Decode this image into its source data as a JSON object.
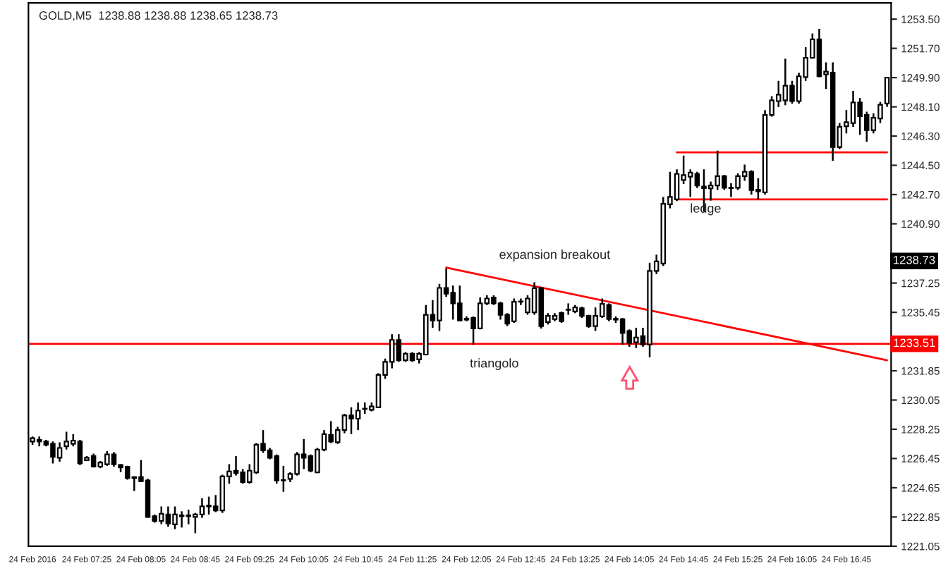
{
  "chart_data": {
    "type": "candlestick",
    "title": "GOLD,M5  1238.88 1238.88 1238.65 1238.73",
    "categories": [
      "24 Feb 2016",
      null,
      null,
      null,
      null,
      null,
      null,
      null,
      "24 Feb 07:25",
      null,
      null,
      null,
      null,
      null,
      null,
      null,
      "24 Feb 08:05",
      null,
      null,
      null,
      null,
      null,
      null,
      null,
      "24 Feb 08:45",
      null,
      null,
      null,
      null,
      null,
      null,
      null,
      "24 Feb 09:25",
      null,
      null,
      null,
      null,
      null,
      null,
      null,
      "24 Feb 10:05",
      null,
      null,
      null,
      null,
      null,
      null,
      null,
      "24 Feb 10:45",
      null,
      null,
      null,
      null,
      null,
      null,
      null,
      "24 Feb 11:25",
      null,
      null,
      null,
      null,
      null,
      null,
      null,
      "24 Feb 12:05",
      null,
      null,
      null,
      null,
      null,
      null,
      null,
      "24 Feb 12:45",
      null,
      null,
      null,
      null,
      null,
      null,
      null,
      "24 Feb 13:25",
      null,
      null,
      null,
      null,
      null,
      null,
      null,
      "24 Feb 14:05",
      null,
      null,
      null,
      null,
      null,
      null,
      null,
      "24 Feb 14:45",
      null,
      null,
      null,
      null,
      null,
      null,
      null,
      "24 Feb 15:25",
      null,
      null,
      null,
      null,
      null,
      null,
      null,
      "24 Feb 16:05",
      null,
      null,
      null,
      null,
      null,
      null,
      null,
      "24 Feb 16:45",
      null,
      null,
      null,
      null,
      null,
      null
    ],
    "ohlc": [
      [
        1227.5,
        1227.8,
        1227.3,
        1227.7
      ],
      [
        1227.6,
        1227.8,
        1227.2,
        1227.5
      ],
      [
        1227.5,
        1227.6,
        1227.2,
        1227.3
      ],
      [
        1227.35,
        1227.5,
        1226.15,
        1226.55
      ],
      [
        1226.5,
        1227.45,
        1226.25,
        1227.1
      ],
      [
        1227.2,
        1228.1,
        1227.0,
        1227.5
      ],
      [
        1227.35,
        1227.95,
        1227.2,
        1227.55
      ],
      [
        1227.5,
        1227.6,
        1226.05,
        1226.15
      ],
      [
        1226.35,
        1226.6,
        1226.3,
        1226.5
      ],
      [
        1226.6,
        1226.75,
        1225.9,
        1225.95
      ],
      [
        1225.95,
        1226.3,
        1225.85,
        1226.2
      ],
      [
        1226.1,
        1226.9,
        1226.0,
        1226.7
      ],
      [
        1226.7,
        1226.85,
        1225.95,
        1226.1
      ],
      [
        1226.05,
        1226.1,
        1225.6,
        1225.9
      ],
      [
        1225.95,
        1226.0,
        1225.15,
        1225.25
      ],
      [
        1225.25,
        1225.35,
        1224.45,
        1225.3
      ],
      [
        1225.3,
        1226.35,
        1225.0,
        1225.05
      ],
      [
        1225.1,
        1225.2,
        1222.8,
        1222.85
      ],
      [
        1222.9,
        1223.0,
        1222.5,
        1222.6
      ],
      [
        1222.6,
        1223.5,
        1222.4,
        1223.05
      ],
      [
        1223.0,
        1223.5,
        1222.25,
        1222.45
      ],
      [
        1222.4,
        1223.5,
        1222.1,
        1223.0
      ],
      [
        1222.9,
        1223.2,
        1222.2,
        1222.95
      ],
      [
        1222.95,
        1223.3,
        1222.4,
        1222.9
      ],
      [
        1222.85,
        1223.1,
        1221.85,
        1223.0
      ],
      [
        1223.0,
        1224.0,
        1222.8,
        1223.5
      ],
      [
        1223.5,
        1224.1,
        1223.0,
        1223.55
      ],
      [
        1223.5,
        1224.2,
        1223.15,
        1223.25
      ],
      [
        1223.25,
        1225.45,
        1223.1,
        1225.35
      ],
      [
        1225.35,
        1226.1,
        1224.9,
        1225.65
      ],
      [
        1225.7,
        1226.6,
        1225.4,
        1225.55
      ],
      [
        1225.6,
        1225.8,
        1224.9,
        1225.0
      ],
      [
        1225.0,
        1226.1,
        1224.9,
        1225.7
      ],
      [
        1225.6,
        1227.4,
        1225.5,
        1227.3
      ],
      [
        1227.35,
        1228.2,
        1226.8,
        1226.95
      ],
      [
        1226.95,
        1227.1,
        1226.4,
        1226.5
      ],
      [
        1226.6,
        1226.7,
        1224.9,
        1225.1
      ],
      [
        1225.1,
        1226.0,
        1224.4,
        1225.1
      ],
      [
        1225.2,
        1225.6,
        1225.0,
        1225.5
      ],
      [
        1225.5,
        1226.85,
        1225.4,
        1226.7
      ],
      [
        1226.7,
        1227.65,
        1225.8,
        1226.5
      ],
      [
        1226.6,
        1226.7,
        1225.6,
        1225.7
      ],
      [
        1225.6,
        1227.1,
        1225.55,
        1227.0
      ],
      [
        1227.0,
        1228.2,
        1226.9,
        1227.95
      ],
      [
        1227.9,
        1228.75,
        1227.4,
        1227.5
      ],
      [
        1227.45,
        1228.4,
        1227.35,
        1228.2
      ],
      [
        1228.2,
        1229.2,
        1228.0,
        1229.1
      ],
      [
        1229.1,
        1229.6,
        1227.95,
        1228.9
      ],
      [
        1228.9,
        1229.9,
        1228.2,
        1229.4
      ],
      [
        1229.5,
        1229.9,
        1229.2,
        1229.5
      ],
      [
        1229.45,
        1229.9,
        1229.35,
        1229.65
      ],
      [
        1229.6,
        1231.7,
        1229.55,
        1231.6
      ],
      [
        1231.6,
        1232.6,
        1231.35,
        1232.4
      ],
      [
        1232.4,
        1234.1,
        1232.0,
        1233.75
      ],
      [
        1233.75,
        1234.1,
        1232.4,
        1232.5
      ],
      [
        1232.5,
        1233.0,
        1232.4,
        1232.9
      ],
      [
        1232.9,
        1233.0,
        1232.4,
        1232.5
      ],
      [
        1232.55,
        1233.0,
        1232.3,
        1232.9
      ],
      [
        1232.85,
        1235.9,
        1232.8,
        1235.3
      ],
      [
        1235.3,
        1236.2,
        1234.5,
        1234.95
      ],
      [
        1234.95,
        1237.2,
        1234.3,
        1236.95
      ],
      [
        1236.95,
        1238.15,
        1236.4,
        1236.6
      ],
      [
        1236.65,
        1237.1,
        1235.0,
        1236.0
      ],
      [
        1236.0,
        1237.1,
        1234.9,
        1234.95
      ],
      [
        1235.0,
        1235.2,
        1234.9,
        1235.05
      ],
      [
        1235.1,
        1235.2,
        1233.47,
        1234.46
      ],
      [
        1234.46,
        1236.37,
        1234.4,
        1236.0
      ],
      [
        1236.0,
        1236.5,
        1235.9,
        1236.3
      ],
      [
        1236.36,
        1236.5,
        1235.9,
        1236.0
      ],
      [
        1236.0,
        1236.1,
        1235.0,
        1235.3
      ],
      [
        1235.3,
        1235.4,
        1234.6,
        1234.75
      ],
      [
        1234.9,
        1236.3,
        1234.8,
        1236.1
      ],
      [
        1236.1,
        1236.3,
        1235.9,
        1236.1
      ],
      [
        1235.45,
        1236.5,
        1235.3,
        1236.3
      ],
      [
        1235.45,
        1237.3,
        1235.3,
        1236.93
      ],
      [
        1236.93,
        1237.0,
        1234.45,
        1234.6
      ],
      [
        1234.85,
        1235.4,
        1234.7,
        1235.23
      ],
      [
        1235.03,
        1235.4,
        1234.9,
        1235.23
      ],
      [
        1235.4,
        1235.5,
        1234.8,
        1234.9
      ],
      [
        1235.6,
        1236.0,
        1235.3,
        1235.6
      ],
      [
        1235.5,
        1235.9,
        1235.4,
        1235.75
      ],
      [
        1235.7,
        1235.8,
        1235.1,
        1235.23
      ],
      [
        1235.23,
        1235.3,
        1234.5,
        1234.6
      ],
      [
        1234.6,
        1235.75,
        1234.3,
        1235.23
      ],
      [
        1235.2,
        1236.3,
        1235.1,
        1235.97
      ],
      [
        1235.9,
        1236.0,
        1234.9,
        1235.03
      ],
      [
        1235.0,
        1235.2,
        1234.8,
        1235.05
      ],
      [
        1235.03,
        1235.1,
        1233.47,
        1234.18
      ],
      [
        1234.3,
        1234.4,
        1233.33,
        1233.55
      ],
      [
        1233.6,
        1234.5,
        1233.25,
        1233.9
      ],
      [
        1233.98,
        1234.5,
        1233.33,
        1233.47
      ],
      [
        1233.47,
        1238.5,
        1232.68,
        1238.0
      ],
      [
        1238.0,
        1239.0,
        1237.8,
        1238.58
      ],
      [
        1238.45,
        1242.55,
        1238.3,
        1242.13
      ],
      [
        1242.1,
        1244.1,
        1241.85,
        1242.55
      ],
      [
        1242.4,
        1244.25,
        1242.3,
        1243.97
      ],
      [
        1243.6,
        1245.1,
        1243.35,
        1243.9
      ],
      [
        1243.8,
        1244.25,
        1242.55,
        1244.05
      ],
      [
        1243.97,
        1244.1,
        1243.1,
        1243.26
      ],
      [
        1243.2,
        1244.25,
        1241.65,
        1243.1
      ],
      [
        1243.08,
        1243.5,
        1242.33,
        1243.26
      ],
      [
        1243.26,
        1245.4,
        1242.98,
        1243.83
      ],
      [
        1243.83,
        1243.9,
        1242.98,
        1243.12
      ],
      [
        1243.1,
        1243.4,
        1242.55,
        1243.12
      ],
      [
        1243.12,
        1244.0,
        1242.98,
        1243.83
      ],
      [
        1243.83,
        1244.55,
        1243.55,
        1244.1
      ],
      [
        1244.1,
        1244.2,
        1242.7,
        1242.98
      ],
      [
        1243.0,
        1243.7,
        1242.4,
        1242.9
      ],
      [
        1242.84,
        1247.9,
        1242.7,
        1247.6
      ],
      [
        1247.6,
        1248.75,
        1247.5,
        1248.5
      ],
      [
        1248.45,
        1249.7,
        1248.08,
        1248.85
      ],
      [
        1248.5,
        1251.06,
        1248.2,
        1249.4
      ],
      [
        1249.4,
        1249.7,
        1248.3,
        1248.45
      ],
      [
        1248.45,
        1250.2,
        1248.3,
        1249.98
      ],
      [
        1249.93,
        1251.77,
        1249.7,
        1251.12
      ],
      [
        1251.12,
        1252.62,
        1251.06,
        1252.25
      ],
      [
        1252.25,
        1252.9,
        1249.93,
        1249.98
      ],
      [
        1250.1,
        1250.84,
        1249.2,
        1250.27
      ],
      [
        1250.2,
        1250.84,
        1244.77,
        1245.62
      ],
      [
        1245.62,
        1247.1,
        1245.5,
        1246.87
      ],
      [
        1246.9,
        1247.9,
        1246.47,
        1247.15
      ],
      [
        1247.1,
        1249.08,
        1246.87,
        1248.37
      ],
      [
        1248.37,
        1248.65,
        1246.38,
        1247.52
      ],
      [
        1247.6,
        1247.8,
        1245.95,
        1246.67
      ],
      [
        1246.67,
        1247.7,
        1246.47,
        1247.43
      ],
      [
        1247.38,
        1248.4,
        1247.1,
        1248.23
      ],
      [
        1248.3,
        1249.95,
        1248.1,
        1249.9
      ]
    ],
    "series": [
      {
        "type": "line",
        "color": "#ff0000",
        "values": [
          null,
          null,
          null,
          null,
          null,
          null,
          null,
          null,
          null,
          null,
          null,
          null,
          null,
          null,
          null,
          null,
          null,
          null,
          null,
          null,
          null,
          null,
          null,
          null,
          null,
          null,
          null,
          null,
          null,
          null,
          null,
          null,
          null,
          null,
          null,
          null,
          null,
          null,
          null,
          null,
          null,
          null,
          null,
          null,
          null,
          null,
          null,
          null,
          null,
          null,
          null,
          null,
          null,
          null,
          null,
          null,
          null,
          null,
          null,
          null,
          null,
          1238.2,
          null,
          null,
          null,
          null,
          null,
          null,
          null,
          null,
          null,
          null,
          null,
          null,
          null,
          null,
          null,
          null,
          null,
          null,
          null,
          null,
          null,
          null,
          null,
          null,
          null,
          null,
          null,
          null,
          null,
          null,
          null,
          null,
          null,
          null,
          null,
          null,
          null,
          null,
          null,
          null,
          null,
          null,
          null,
          null,
          null,
          null,
          null,
          null,
          null,
          null,
          null,
          null,
          null,
          null,
          null,
          null,
          null,
          null,
          null,
          null,
          null,
          null,
          null,
          null,
          1232.5
        ]
      },
      {
        "type": "line",
        "color": "#ff0000",
        "values": [
          null,
          null,
          null,
          null,
          null,
          null,
          null,
          null,
          null,
          null,
          null,
          null,
          null,
          null,
          null,
          null,
          null,
          null,
          null,
          null,
          null,
          null,
          null,
          null,
          null,
          null,
          null,
          null,
          null,
          null,
          null,
          null,
          null,
          null,
          null,
          null,
          null,
          null,
          null,
          null,
          null,
          null,
          null,
          null,
          null,
          null,
          null,
          null,
          null,
          null,
          null,
          null,
          null,
          null,
          null,
          null,
          null,
          null,
          null,
          null,
          null,
          null,
          null,
          null,
          null,
          null,
          null,
          null,
          null,
          null,
          null,
          null,
          null,
          null,
          null,
          null,
          null,
          null,
          null,
          null,
          null,
          null,
          null,
          null,
          null,
          null,
          null,
          null,
          null,
          null,
          null,
          null,
          null,
          null,
          null,
          1245.3,
          null,
          null,
          null,
          null,
          null,
          null,
          null,
          null,
          null,
          null,
          null,
          null,
          null,
          null,
          null,
          null,
          null,
          null,
          null,
          null,
          null,
          null,
          null,
          null,
          null,
          null,
          null,
          null,
          null,
          null,
          1245.3
        ]
      },
      {
        "type": "line",
        "color": "#ff0000",
        "values": [
          null,
          null,
          null,
          null,
          null,
          null,
          null,
          null,
          null,
          null,
          null,
          null,
          null,
          null,
          null,
          null,
          null,
          null,
          null,
          null,
          null,
          null,
          null,
          null,
          null,
          null,
          null,
          null,
          null,
          null,
          null,
          null,
          null,
          null,
          null,
          null,
          null,
          null,
          null,
          null,
          null,
          null,
          null,
          null,
          null,
          null,
          null,
          null,
          null,
          null,
          null,
          null,
          null,
          null,
          null,
          null,
          null,
          null,
          null,
          null,
          null,
          null,
          null,
          null,
          null,
          null,
          null,
          null,
          null,
          null,
          null,
          null,
          null,
          null,
          null,
          null,
          null,
          null,
          null,
          null,
          null,
          null,
          null,
          null,
          null,
          null,
          null,
          null,
          null,
          null,
          null,
          null,
          null,
          null,
          null,
          1242.4,
          null,
          null,
          null,
          null,
          null,
          null,
          null,
          null,
          null,
          null,
          null,
          null,
          null,
          null,
          null,
          null,
          null,
          null,
          null,
          null,
          null,
          null,
          null,
          null,
          null,
          null,
          null,
          null,
          null,
          null,
          1242.4
        ]
      }
    ],
    "ref_lines": [
      {
        "axis": "y",
        "value": 1233.51,
        "label": "1233.51",
        "color": "#ff0000"
      }
    ],
    "annotations": [
      "expansion breakout",
      "triangolo",
      "ledge",
      "1238.73"
    ],
    "ylim": [
      1221.05,
      1254.5
    ],
    "yticks": [
      {
        "value": 1253.5,
        "label": "1253.50"
      },
      {
        "value": 1251.7,
        "label": "1251.70"
      },
      {
        "value": 1249.9,
        "label": "1249.90"
      },
      {
        "value": 1248.1,
        "label": "1248.10"
      },
      {
        "value": 1246.3,
        "label": "1246.30"
      },
      {
        "value": 1244.5,
        "label": "1244.50"
      },
      {
        "value": 1242.7,
        "label": "1242.70"
      },
      {
        "value": 1240.9,
        "label": "1240.90"
      },
      {
        "value": 1237.25,
        "label": "1237.25"
      },
      {
        "value": 1235.45,
        "label": "1235.45"
      },
      {
        "value": 1231.85,
        "label": "1231.85"
      },
      {
        "value": 1230.05,
        "label": "1230.05"
      },
      {
        "value": 1228.25,
        "label": "1228.25"
      },
      {
        "value": 1226.45,
        "label": "1226.45"
      },
      {
        "value": 1224.65,
        "label": "1224.65"
      },
      {
        "value": 1222.85,
        "label": "1222.85"
      },
      {
        "value": 1221.05,
        "label": "1221.05"
      }
    ],
    "grid": false,
    "legend": false
  }
}
